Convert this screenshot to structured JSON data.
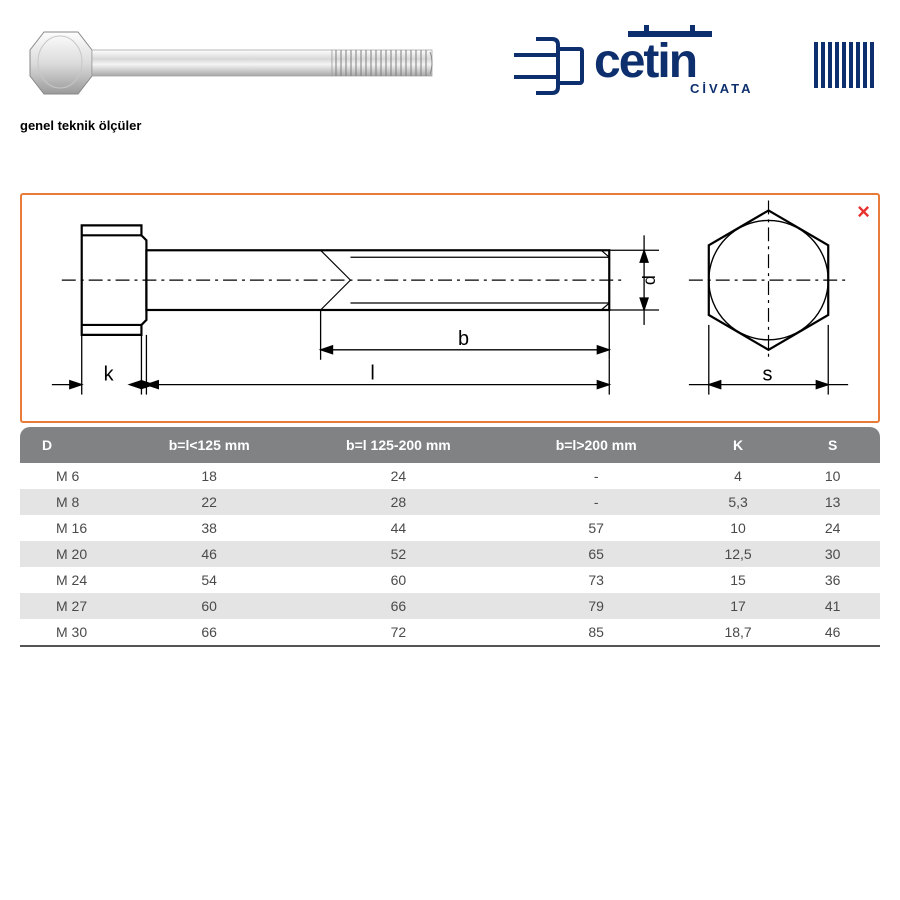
{
  "caption": "genel teknik ölçüler",
  "logo": {
    "brand": "cetin",
    "sub": "CİVATA"
  },
  "close_label": "×",
  "diagram": {
    "labels": {
      "k": "k",
      "l": "l",
      "b": "b",
      "d": "d",
      "s": "s"
    },
    "stroke": "#000000",
    "border": "#e87a3a"
  },
  "table": {
    "header_bg": "#808284",
    "header_fg": "#ffffff",
    "alt_bg": "#e4e4e4",
    "columns": [
      "D",
      "b=l<125 mm",
      "b=l 125-200 mm",
      "b=l>200 mm",
      "K",
      "S"
    ],
    "rows": [
      [
        "M 6",
        "18",
        "24",
        "-",
        "4",
        "10"
      ],
      [
        "M 8",
        "22",
        "28",
        "-",
        "5,3",
        "13"
      ],
      [
        "M 16",
        "38",
        "44",
        "57",
        "10",
        "24"
      ],
      [
        "M 20",
        "46",
        "52",
        "65",
        "12,5",
        "30"
      ],
      [
        "M 24",
        "54",
        "60",
        "73",
        "15",
        "36"
      ],
      [
        "M 27",
        "60",
        "66",
        "79",
        "17",
        "41"
      ],
      [
        "M 30",
        "66",
        "72",
        "85",
        "18,7",
        "46"
      ]
    ]
  }
}
